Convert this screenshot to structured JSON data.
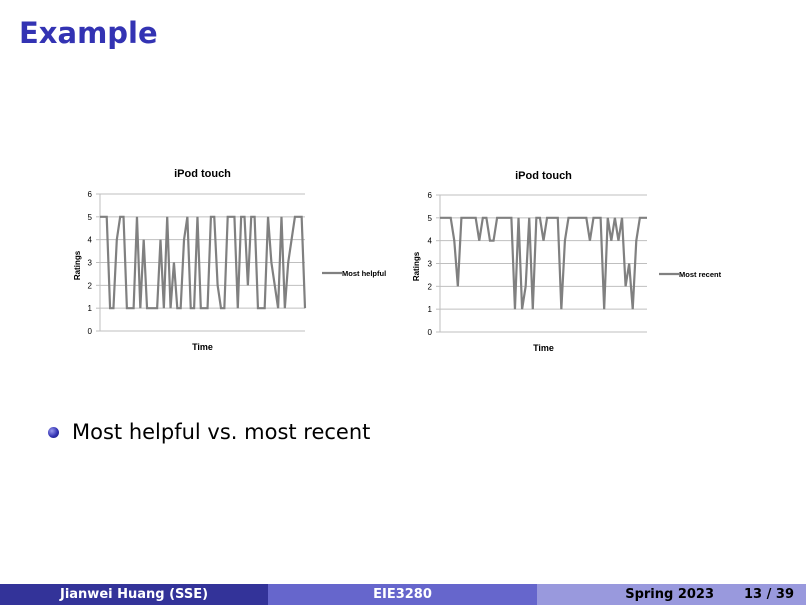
{
  "slide": {
    "title": "Example",
    "bullet": "Most helpful vs. most recent"
  },
  "footer": {
    "author": "Jianwei Huang  (SSE)",
    "course": "EIE3280",
    "term": "Spring 2023",
    "page": "13 / 39"
  },
  "colors": {
    "title": "#3333b3",
    "series": "#808080",
    "grid": "#bfbfbf"
  },
  "chart_data": [
    {
      "type": "line",
      "title": "iPod touch",
      "xlabel": "Time",
      "ylabel": "Ratings",
      "ylim": [
        0,
        6
      ],
      "yticks": [
        "0",
        "1",
        "2",
        "3",
        "4",
        "5",
        "6"
      ],
      "grid": true,
      "legend": "right",
      "series": [
        {
          "name": "Most helpful",
          "values": [
            5,
            5,
            5,
            1,
            1,
            4,
            5,
            5,
            1,
            1,
            1,
            5,
            1,
            4,
            1,
            1,
            1,
            1,
            4,
            1,
            5,
            1,
            3,
            1,
            1,
            4,
            5,
            1,
            1,
            5,
            1,
            1,
            1,
            5,
            5,
            2,
            1,
            1,
            5,
            5,
            5,
            1,
            5,
            5,
            2,
            5,
            5,
            1,
            1,
            1,
            5,
            3,
            2,
            1,
            5,
            1,
            3,
            4,
            5,
            5,
            5,
            1
          ]
        }
      ]
    },
    {
      "type": "line",
      "title": "iPod touch",
      "xlabel": "Time",
      "ylabel": "Ratings",
      "ylim": [
        0,
        6
      ],
      "yticks": [
        "0",
        "1",
        "2",
        "3",
        "4",
        "5",
        "6"
      ],
      "grid": true,
      "legend": "right",
      "series": [
        {
          "name": "Most recent",
          "values": [
            5,
            5,
            5,
            5,
            4,
            2,
            5,
            5,
            5,
            5,
            5,
            4,
            5,
            5,
            4,
            4,
            5,
            5,
            5,
            5,
            5,
            1,
            5,
            1,
            2,
            5,
            1,
            5,
            5,
            4,
            5,
            5,
            5,
            5,
            1,
            4,
            5,
            5,
            5,
            5,
            5,
            5,
            4,
            5,
            5,
            5,
            1,
            5,
            4,
            5,
            4,
            5,
            2,
            3,
            1,
            4,
            5,
            5,
            5
          ]
        }
      ]
    }
  ]
}
